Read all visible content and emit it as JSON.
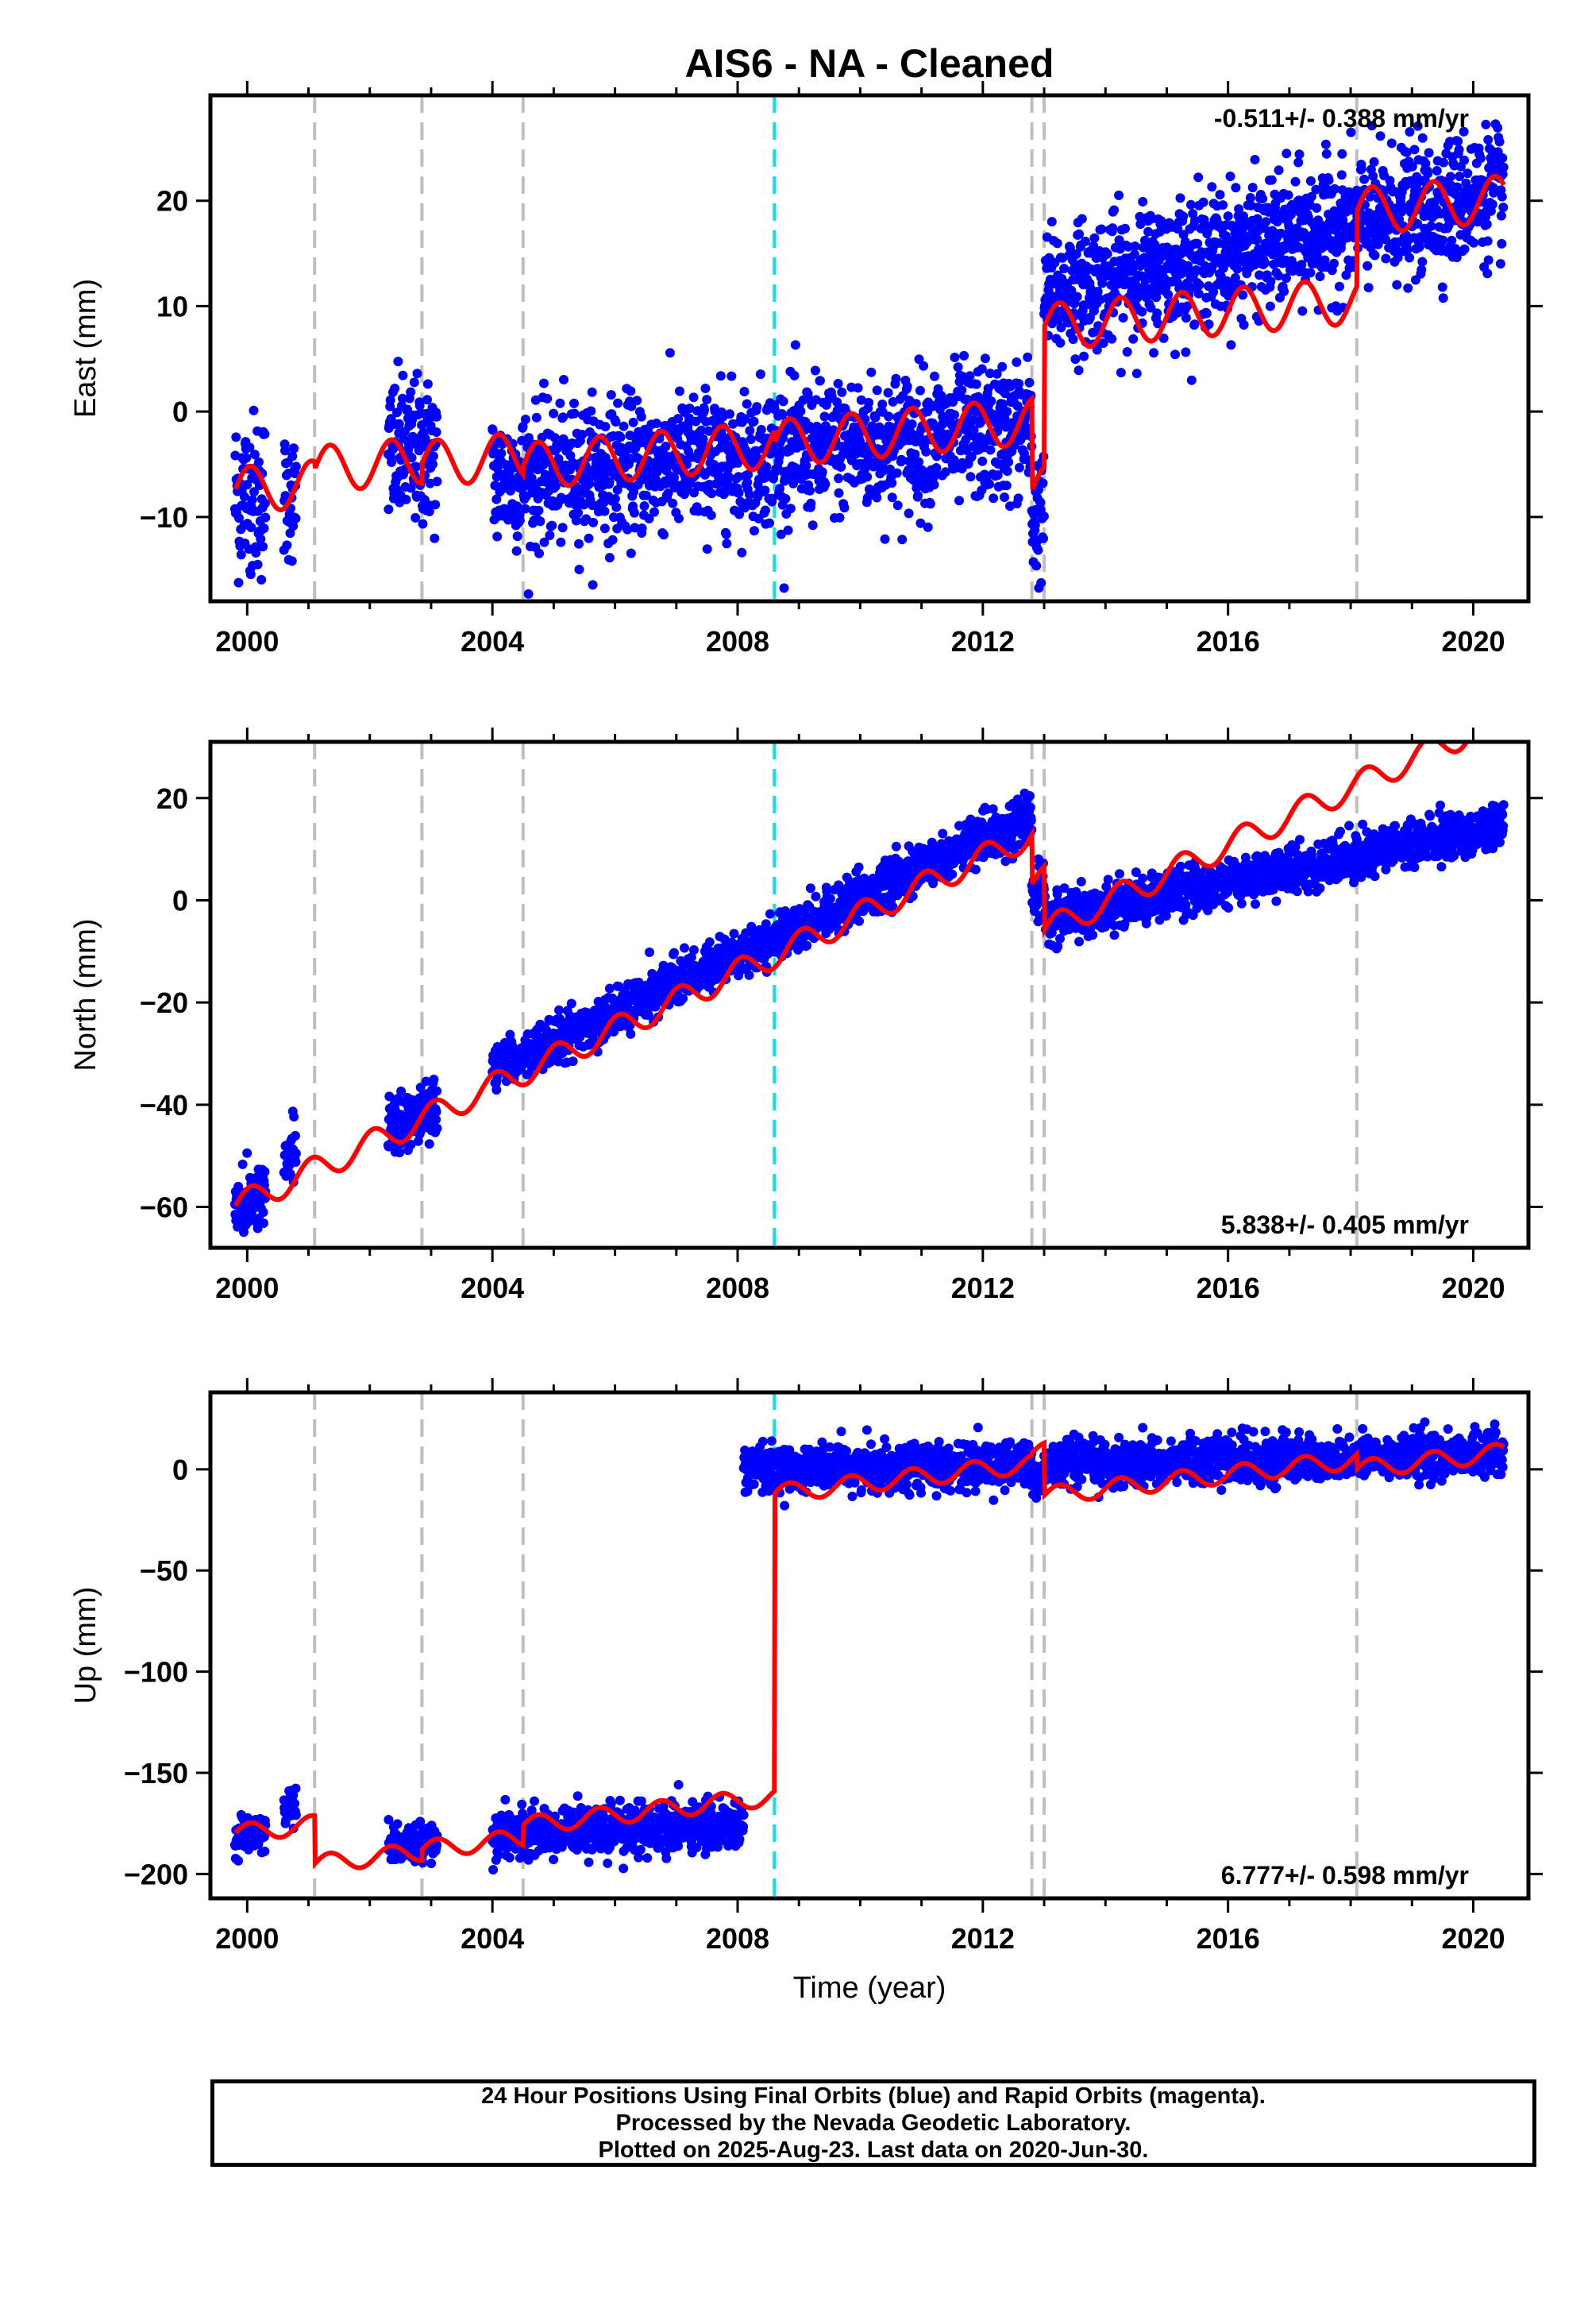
{
  "title": "AIS6  - NA - Cleaned",
  "xlabel": "Time (year)",
  "x_ticks": [
    2000,
    2004,
    2008,
    2012,
    2016,
    2020
  ],
  "colors": {
    "data": "#0000ff",
    "model": "#ff0000",
    "step_equipment": "#bfbfbf",
    "step_earthquake": "#00e5ee",
    "frame": "#000000"
  },
  "footer": {
    "line1": "24 Hour Positions Using Final Orbits (blue) and Rapid Orbits (magenta).",
    "line2": "Processed by the Nevada Geodetic Laboratory.",
    "line3": "Plotted on 2025-Aug-23. Last data on 2020-Jun-30."
  },
  "chart_data": [
    {
      "type": "scatter",
      "component": "east",
      "ylabel": "East (mm)",
      "rate_label": "-0.511+/- 0.388 mm/yr",
      "rate_position": "top-right",
      "xlim": [
        1999.4,
        2020.9
      ],
      "ylim": [
        -18,
        30
      ],
      "y_ticks": [
        -10,
        0,
        10,
        20
      ],
      "gray_steps": [
        2001.1,
        2002.85,
        2004.5,
        2012.8,
        2013.0,
        2018.1
      ],
      "cyan_steps": [
        2008.6
      ],
      "model": {
        "rate": 0.5,
        "annual_amplitude": 2.2,
        "offsets": [
          {
            "t": 1999.8,
            "v": -7.5
          },
          {
            "t": 2001.1,
            "v": -5.5
          },
          {
            "t": 2002.85,
            "v": -5.0
          },
          {
            "t": 2004.5,
            "v": -5.2
          },
          {
            "t": 2008.6,
            "v": -3.0
          },
          {
            "t": 2012.8,
            "v": -7.5
          },
          {
            "t": 2013.0,
            "v": 8.0
          },
          {
            "t": 2018.1,
            "v": 19.0
          }
        ]
      },
      "data_spans": [
        {
          "start": 1999.8,
          "end": 2000.3,
          "mean": -8,
          "scatter": 4,
          "slope": 0
        },
        {
          "start": 2000.6,
          "end": 2000.8,
          "mean": -8,
          "scatter": 3,
          "slope": 0
        },
        {
          "start": 2002.3,
          "end": 2003.1,
          "mean": -4,
          "scatter": 3.5,
          "slope": 0
        },
        {
          "start": 2004.0,
          "end": 2012.8,
          "mean": -6.5,
          "scatter": 3.2,
          "slope": 0.55
        },
        {
          "start": 2012.8,
          "end": 2013.0,
          "mean": -10,
          "scatter": 3,
          "slope": 0
        },
        {
          "start": 2013.0,
          "end": 2020.5,
          "mean": 11,
          "scatter": 3.0,
          "slope": 1.35
        }
      ]
    },
    {
      "type": "scatter",
      "component": "north",
      "ylabel": "North (mm)",
      "rate_label": "5.838+/- 0.405 mm/yr",
      "rate_position": "bottom-right",
      "xlim": [
        1999.4,
        2020.9
      ],
      "ylim": [
        -68,
        31
      ],
      "y_ticks": [
        -60,
        -40,
        -20,
        0,
        20
      ],
      "gray_steps": [
        2001.1,
        2002.85,
        2004.5,
        2012.8,
        2013.0,
        2018.1
      ],
      "cyan_steps": [
        2008.6
      ],
      "model": {
        "rate": 5.6,
        "annual_amplitude": 2.6,
        "offsets": [
          {
            "t": 1999.8,
            "v": -60
          },
          {
            "t": 2012.8,
            "v": 3.0
          },
          {
            "t": 2013.0,
            "v": -6.0
          }
        ]
      },
      "data_spans": [
        {
          "start": 1999.8,
          "end": 2000.3,
          "mean": -60,
          "scatter": 3,
          "slope": 5.6
        },
        {
          "start": 2000.6,
          "end": 2000.8,
          "mean": -50,
          "scatter": 3,
          "slope": 5.6
        },
        {
          "start": 2002.3,
          "end": 2003.1,
          "mean": -45,
          "scatter": 3,
          "slope": 5.6
        },
        {
          "start": 2004.0,
          "end": 2012.8,
          "mean": -33,
          "scatter": 2.2,
          "slope": 5.6
        },
        {
          "start": 2012.8,
          "end": 2013.0,
          "mean": 1,
          "scatter": 2.5,
          "slope": 0
        },
        {
          "start": 2013.0,
          "end": 2020.5,
          "mean": -4,
          "scatter": 2.2,
          "slope": 2.5
        }
      ]
    },
    {
      "type": "scatter",
      "component": "up",
      "ylabel": "Up (mm)",
      "rate_label": "6.777+/- 0.598 mm/yr",
      "rate_position": "bottom-right",
      "xlim": [
        1999.4,
        2020.9
      ],
      "ylim": [
        -212,
        38
      ],
      "y_ticks": [
        -200,
        -150,
        -100,
        -50,
        0
      ],
      "gray_steps": [
        2001.1,
        2002.85,
        2004.5,
        2012.8,
        2013.0,
        2018.1
      ],
      "cyan_steps": [
        2008.6
      ],
      "model": {
        "rate": 3.5,
        "annual_amplitude": 4.5,
        "offsets": [
          {
            "t": 1999.8,
            "v": -180
          },
          {
            "t": 2001.1,
            "v": -195
          },
          {
            "t": 2002.85,
            "v": -188
          },
          {
            "t": 2004.5,
            "v": -176
          },
          {
            "t": 2008.6,
            "v": -12
          },
          {
            "t": 2012.8,
            "v": 8
          },
          {
            "t": 2013.0,
            "v": -13
          },
          {
            "t": 2018.1,
            "v": 0
          }
        ]
      },
      "data_spans": [
        {
          "start": 1999.8,
          "end": 2000.3,
          "mean": -180,
          "scatter": 5,
          "slope": 0
        },
        {
          "start": 2000.6,
          "end": 2000.8,
          "mean": -165,
          "scatter": 5,
          "slope": 0
        },
        {
          "start": 2002.3,
          "end": 2003.1,
          "mean": -185,
          "scatter": 5,
          "slope": 0
        },
        {
          "start": 2004.0,
          "end": 2008.1,
          "mean": -180,
          "scatter": 6,
          "slope": 1
        },
        {
          "start": 2008.1,
          "end": 2012.8,
          "mean": 0,
          "scatter": 5.5,
          "slope": 0.5
        },
        {
          "start": 2012.8,
          "end": 2013.0,
          "mean": -5,
          "scatter": 5,
          "slope": 0
        },
        {
          "start": 2013.0,
          "end": 2020.5,
          "mean": 2,
          "scatter": 5.5,
          "slope": 0.8
        }
      ]
    }
  ]
}
